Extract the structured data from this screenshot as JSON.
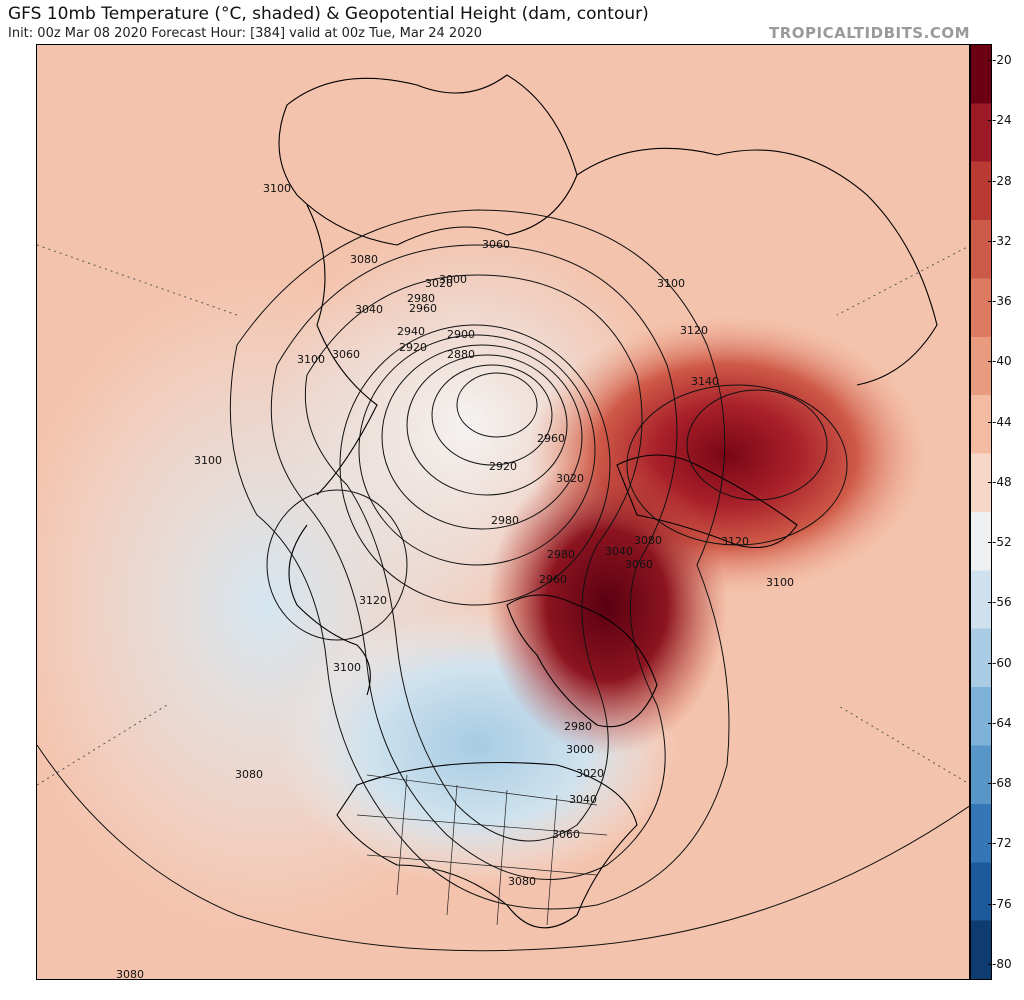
{
  "header": {
    "title": "GFS 10mb Temperature (°C, shaded) & Geopotential Height (dam, contour)",
    "subtitle": "Init: 00z Mar 08 2020   Forecast Hour: [384]   valid at 00z Tue, Mar 24 2020",
    "brand": "TROPICALTIDBITS.COM"
  },
  "colorbar": {
    "ticks": [
      "-20",
      "-24",
      "-28",
      "-32",
      "-36",
      "-40",
      "-44",
      "-48",
      "-52",
      "-56",
      "-60",
      "-64",
      "-68",
      "-72",
      "-76",
      "-80"
    ],
    "colors": [
      "#6b0012",
      "#9c1a25",
      "#b83a33",
      "#cc5a48",
      "#dd7b62",
      "#e99b80",
      "#f2bba2",
      "#f7d8c8",
      "#eef0f2",
      "#cfe1ee",
      "#a9cbe4",
      "#7fb2d8",
      "#5896c8",
      "#3476b6",
      "#1d5a9c",
      "#0e3b70"
    ]
  },
  "contour_labels": [
    {
      "text": "3100"
    },
    {
      "text": "3080"
    },
    {
      "text": "3060"
    },
    {
      "text": "3020"
    },
    {
      "text": "3000"
    },
    {
      "text": "2980"
    },
    {
      "text": "2960"
    },
    {
      "text": "3040"
    },
    {
      "text": "2940"
    },
    {
      "text": "2920"
    },
    {
      "text": "2900"
    },
    {
      "text": "2880"
    },
    {
      "text": "3100"
    },
    {
      "text": "3060"
    },
    {
      "text": "3100"
    },
    {
      "text": "3100"
    },
    {
      "text": "3120"
    },
    {
      "text": "3140"
    },
    {
      "text": "2960"
    },
    {
      "text": "2920"
    },
    {
      "text": "3020"
    },
    {
      "text": "2980"
    },
    {
      "text": "2980"
    },
    {
      "text": "3040"
    },
    {
      "text": "3080"
    },
    {
      "text": "3060"
    },
    {
      "text": "2960"
    },
    {
      "text": "3120"
    },
    {
      "text": "3100"
    },
    {
      "text": "3120"
    },
    {
      "text": "3100"
    },
    {
      "text": "3080"
    },
    {
      "text": "2980"
    },
    {
      "text": "3000"
    },
    {
      "text": "3020"
    },
    {
      "text": "3040"
    },
    {
      "text": "3060"
    },
    {
      "text": "3080"
    },
    {
      "text": "3080"
    }
  ]
}
